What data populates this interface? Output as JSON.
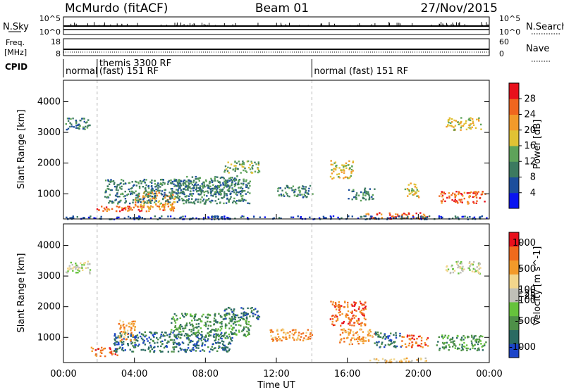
{
  "header": {
    "station": "McMurdo (fitACF)",
    "beam": "Beam 01",
    "date": "27/Nov/2015"
  },
  "sky_panel": {
    "left_label": "N.Sky",
    "left_ticks": [
      "10^5",
      "10^0"
    ],
    "right_label": "N.Search",
    "right_ticks": [
      "10^5",
      "10^0"
    ]
  },
  "freq_panel": {
    "left_label_line1": "Freq.",
    "left_label_line2": "[MHz]",
    "left_ticks": [
      "18",
      "8"
    ],
    "right_label": "Nave",
    "right_ticks": [
      "60",
      "0"
    ]
  },
  "cpid_panel": {
    "label": "CPID",
    "programs": [
      {
        "start_hour": 0.0,
        "line1": "normal",
        "line2": ""
      },
      {
        "start_hour": 1.9,
        "line1": "themis 3300 RF",
        "line2": "(fast) 151 RF"
      },
      {
        "start_hour": 14.0,
        "line1": "normal (fast) 151 RF",
        "line2": ""
      }
    ]
  },
  "chart_data": [
    {
      "type": "heatmap",
      "name": "power",
      "ylabel": "Slant Range [km]",
      "ylim": [
        180,
        4700
      ],
      "yticks": [
        1000,
        2000,
        3000,
        4000
      ],
      "colorbar": {
        "label": "Power [dB]",
        "range": [
          0,
          32
        ],
        "ticks": [
          4,
          8,
          12,
          16,
          20,
          24,
          28
        ],
        "colors": [
          "#0a14f0",
          "#1c4e9c",
          "#3c7a60",
          "#5ea35a",
          "#e0c234",
          "#f29a2a",
          "#f0661e",
          "#e8101c"
        ]
      },
      "regions": [
        {
          "t": [
            0.1,
            1.5
          ],
          "r": [
            3100,
            3500
          ],
          "level": 2
        },
        {
          "t": [
            1.8,
            6.2
          ],
          "r": [
            450,
            620
          ],
          "level": 6
        },
        {
          "t": [
            4.0,
            6.3
          ],
          "r": [
            500,
            1100
          ],
          "level": 5
        },
        {
          "t": [
            2.3,
            10.5
          ],
          "r": [
            700,
            1500
          ],
          "level": 2
        },
        {
          "t": [
            6.0,
            10.0
          ],
          "r": [
            1000,
            1600
          ],
          "level": 2
        },
        {
          "t": [
            9.0,
            11.0
          ],
          "r": [
            1700,
            2100
          ],
          "level": 3
        },
        {
          "t": [
            12.0,
            14.0
          ],
          "r": [
            900,
            1300
          ],
          "level": 2
        },
        {
          "t": [
            15.0,
            16.3
          ],
          "r": [
            1500,
            2100
          ],
          "level": 4
        },
        {
          "t": [
            16.0,
            17.5
          ],
          "r": [
            800,
            1200
          ],
          "level": 2
        },
        {
          "t": [
            19.2,
            20.0
          ],
          "r": [
            900,
            1400
          ],
          "level": 4
        },
        {
          "t": [
            21.5,
            23.5
          ],
          "r": [
            3100,
            3500
          ],
          "level": 4
        },
        {
          "t": [
            21.0,
            23.8
          ],
          "r": [
            700,
            1100
          ],
          "level": 6
        },
        {
          "t": [
            17.0,
            20.5
          ],
          "r": [
            200,
            400
          ],
          "level": 6
        },
        {
          "t": [
            0.0,
            24.0
          ],
          "r": [
            190,
            300
          ],
          "level": 1
        }
      ]
    },
    {
      "type": "heatmap",
      "name": "velocity",
      "ylabel": "Slant Range [km]",
      "ylim": [
        180,
        4700
      ],
      "yticks": [
        1000,
        2000,
        3000,
        4000
      ],
      "colorbar": {
        "label": "Velocity [m s^-1]",
        "range": [
          -1200,
          1200
        ],
        "ticks": [
          1000,
          500,
          100,
          25,
          -25,
          -100,
          -500,
          -1000
        ],
        "colors": [
          "#1c44c8",
          "#2a6a62",
          "#4e9048",
          "#66c23c",
          "#c0c0b8",
          "#f2d68c",
          "#f29a2a",
          "#ef6a1c",
          "#e8101c"
        ]
      },
      "regions": [
        {
          "t": [
            0.1,
            1.5
          ],
          "r": [
            3100,
            3500
          ],
          "level": 4
        },
        {
          "t": [
            1.5,
            3.0
          ],
          "r": [
            400,
            700
          ],
          "level": 7
        },
        {
          "t": [
            2.8,
            9.5
          ],
          "r": [
            550,
            1200
          ],
          "level": 1
        },
        {
          "t": [
            3.0,
            4.0
          ],
          "r": [
            900,
            1600
          ],
          "level": 6
        },
        {
          "t": [
            6.0,
            10.5
          ],
          "r": [
            1000,
            1800
          ],
          "level": 2
        },
        {
          "t": [
            9.0,
            11.0
          ],
          "r": [
            1600,
            2000
          ],
          "level": 1
        },
        {
          "t": [
            11.5,
            14.0
          ],
          "r": [
            900,
            1300
          ],
          "level": 6
        },
        {
          "t": [
            15.0,
            17.0
          ],
          "r": [
            1400,
            2200
          ],
          "level": 7
        },
        {
          "t": [
            15.5,
            17.5
          ],
          "r": [
            800,
            1300
          ],
          "level": 6
        },
        {
          "t": [
            17.5,
            19.0
          ],
          "r": [
            700,
            1200
          ],
          "level": 1
        },
        {
          "t": [
            19.0,
            20.5
          ],
          "r": [
            700,
            1100
          ],
          "level": 7
        },
        {
          "t": [
            21.5,
            23.5
          ],
          "r": [
            3100,
            3500
          ],
          "level": 4
        },
        {
          "t": [
            21.0,
            23.8
          ],
          "r": [
            600,
            1100
          ],
          "level": 2
        },
        {
          "t": [
            17.0,
            20.5
          ],
          "r": [
            200,
            350
          ],
          "level": 5
        }
      ]
    }
  ],
  "time_axis": {
    "label": "Time UT",
    "ticks": [
      "00:00",
      "04:00",
      "08:00",
      "12:00",
      "16:00",
      "20:00",
      "00:00"
    ]
  }
}
